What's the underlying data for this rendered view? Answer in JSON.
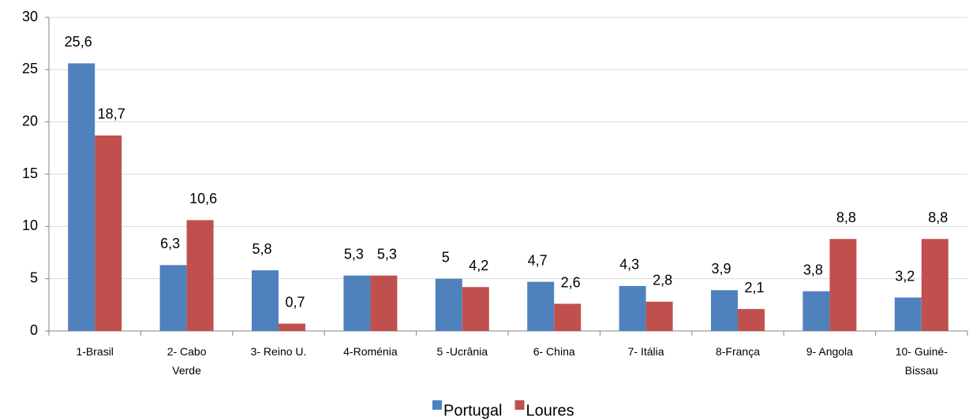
{
  "chart_data": {
    "type": "bar",
    "categories": [
      "1-Brasil",
      "2- Cabo Verde",
      "3- Reino U.",
      "4-Roménia",
      "5 -Ucrânia",
      "6- China",
      "7- Itália",
      "8-França",
      "9- Angola",
      "10- Guiné-Bissau"
    ],
    "series": [
      {
        "name": "Portugal",
        "color": "#4f81bd",
        "values": [
          25.6,
          6.3,
          5.8,
          5.3,
          5,
          4.7,
          4.3,
          3.9,
          3.8,
          3.2
        ],
        "value_labels": [
          "25,6",
          "6,3",
          "5,8",
          "5,3",
          "5",
          "4,7",
          "4,3",
          "3,9",
          "3,8",
          "3,2"
        ]
      },
      {
        "name": "Loures",
        "color": "#c0504d",
        "values": [
          18.7,
          10.6,
          0.7,
          5.3,
          4.2,
          2.6,
          2.8,
          2.1,
          8.8,
          8.8
        ],
        "value_labels": [
          "18,7",
          "10,6",
          "0,7",
          "5,3",
          "4,2",
          "2,6",
          "2,8",
          "2,1",
          "8,8",
          "8,8"
        ]
      }
    ],
    "ylim": [
      0,
      30
    ],
    "yticks": [
      0,
      5,
      10,
      15,
      20,
      25,
      30
    ],
    "grid": true,
    "legend": "bottom"
  }
}
